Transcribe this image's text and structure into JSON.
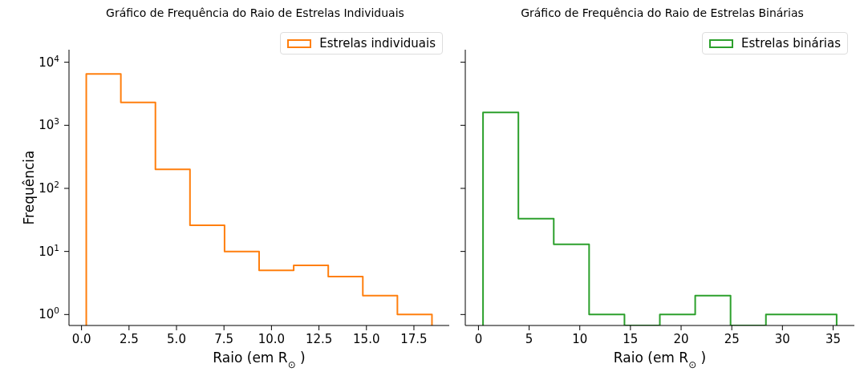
{
  "chart_data": [
    {
      "type": "histogram",
      "title": "Gráfico de Frequência do Raio de Estrelas Individuais",
      "xlabel": "Raio (em R$_{⊙}$)",
      "ylabel": "Frequência",
      "bins": [
        0.25,
        2.07,
        3.89,
        5.71,
        7.53,
        9.35,
        11.17,
        12.99,
        14.81,
        16.63,
        18.45
      ],
      "series": [
        {
          "name": "Estrelas individuais",
          "color": "#ff7f0e",
          "values": [
            6500,
            2300,
            200,
            26,
            10,
            5,
            6,
            4,
            2,
            1
          ]
        }
      ],
      "xlim": [
        -0.66,
        19.36
      ],
      "xticks": [
        {
          "value": 0,
          "label": "0.0"
        },
        2.5,
        {
          "value": 5,
          "label": "5.0"
        },
        7.5,
        {
          "value": 10,
          "label": "10.0"
        },
        12.5,
        {
          "value": 15,
          "label": "15.0"
        },
        17.5
      ],
      "ylim": [
        0.67,
        15800
      ],
      "yticks": [
        {
          "value": 1,
          "label": "10$^{0}$"
        },
        {
          "value": 10,
          "label": "10$^{1}$"
        },
        {
          "value": 100,
          "label": "10$^{2}$"
        },
        {
          "value": 1000,
          "label": "10$^{3}$"
        },
        {
          "value": 10000,
          "label": "10$^{4}$"
        }
      ],
      "log": true,
      "legend": "top right"
    },
    {
      "type": "histogram",
      "title": "Gráfico de Frequência do Raio de Estrelas Binárias",
      "xlabel": "Raio (em R$_{⊙}$)",
      "bins": [
        0.45,
        3.94,
        7.43,
        10.92,
        14.41,
        17.9,
        21.39,
        24.88,
        28.37,
        31.86,
        35.35
      ],
      "series": [
        {
          "name": "Estrelas binárias",
          "color": "#2ca02c",
          "values": [
            1600,
            33,
            13,
            1,
            null,
            1,
            2,
            null,
            1,
            1
          ]
        }
      ],
      "xlim": [
        -1.3,
        37.1
      ],
      "xticks": [
        0,
        5,
        10,
        15,
        20,
        25,
        30,
        35
      ],
      "ylim": [
        0.67,
        15800
      ],
      "yticks": [
        {
          "value": 1,
          "label": null
        },
        {
          "value": 10,
          "label": null
        },
        {
          "value": 100,
          "label": null
        },
        {
          "value": 1000,
          "label": null
        },
        {
          "value": 10000,
          "label": null
        }
      ],
      "log": true,
      "legend": "top right",
      "tick_labels": "x"
    }
  ]
}
